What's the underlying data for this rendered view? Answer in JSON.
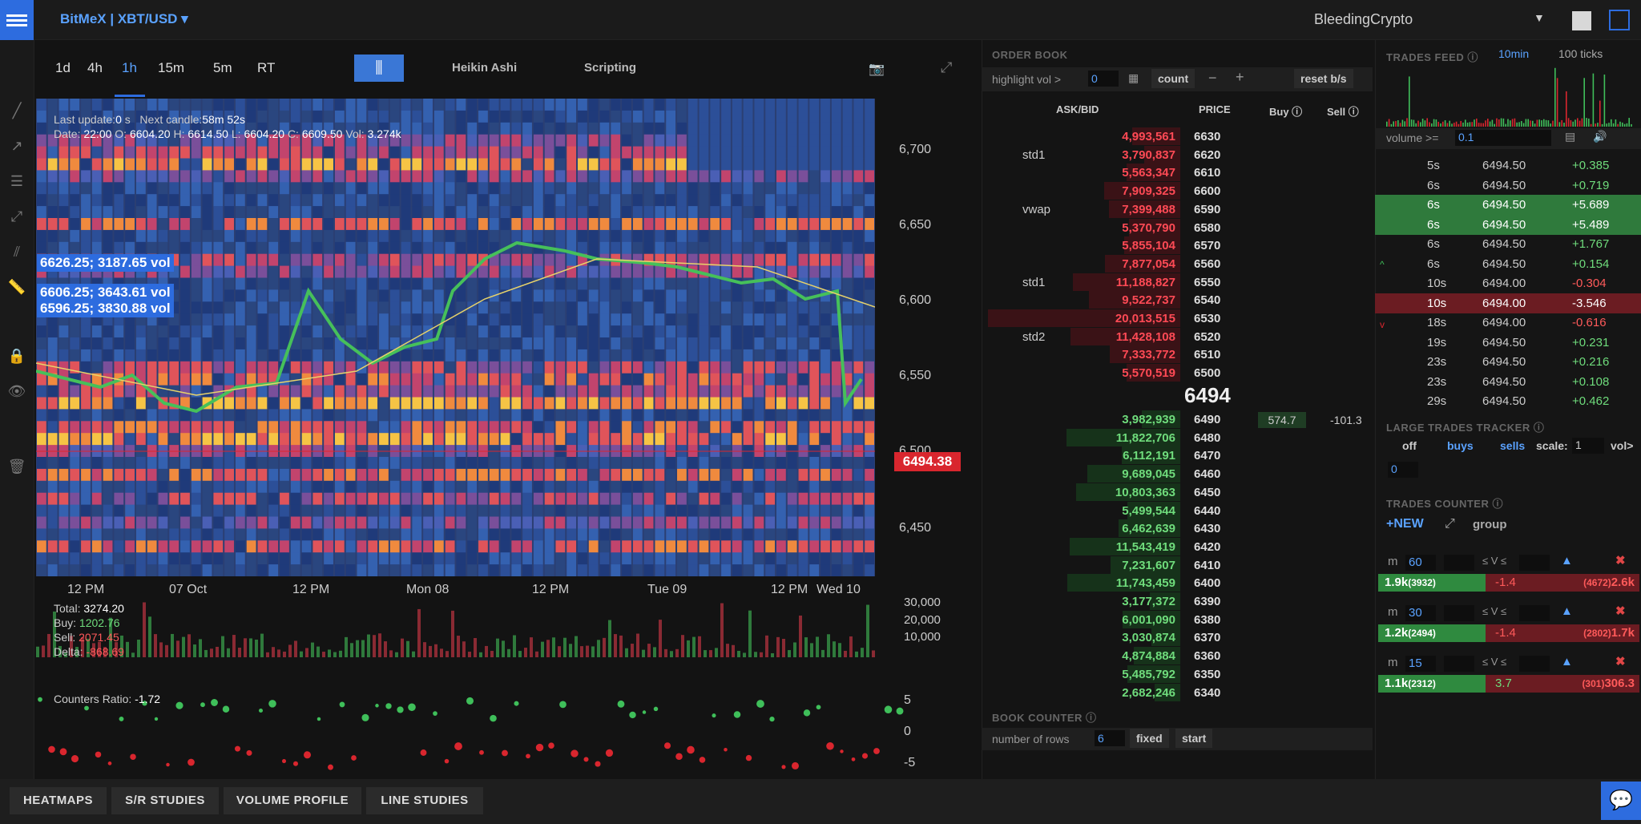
{
  "topbar": {
    "market": "BitMeX | XBT/USD",
    "user": "BleedingCrypto"
  },
  "timeframes": [
    "1d",
    "4h",
    "1h",
    "15m",
    "5m",
    "RT"
  ],
  "chart_tabs": {
    "heikin": "Heikin Ashi",
    "scripting": "Scripting"
  },
  "chart": {
    "last_update_label": "Last update:",
    "last_update_value": "0",
    "last_update_unit": "s",
    "next_candle_label": "Next candle:",
    "next_candle_value": "58m 52s",
    "ohlc": {
      "date_label": "Date:",
      "date": "22:00",
      "o_label": "O:",
      "o": "6604.20",
      "h_label": "H:",
      "h": "6614.50",
      "l_label": "L:",
      "l": "6604.20",
      "c_label": "C:",
      "c": "6609.50",
      "vol_label": "Vol:",
      "vol": "3.274k"
    },
    "vol_tags": [
      "6626.25; 3187.65 vol",
      "6606.25; 3643.61 vol",
      "6596.25; 3830.88 vol"
    ],
    "price_axis": [
      "6,700",
      "6,650",
      "6,600",
      "6,550",
      "6,500",
      "6,450"
    ],
    "last_price": "6494.38",
    "x_axis": [
      "12 PM",
      "07 Oct",
      "12 PM",
      "Mon 08",
      "12 PM",
      "Tue 09",
      "12 PM",
      "Wed 10"
    ],
    "stats": {
      "total_label": "Total:",
      "total": "3274.20",
      "buy_label": "Buy:",
      "buy": "1202.76",
      "sell_label": "Sell:",
      "sell": "2071.45",
      "delta_label": "Delta:",
      "delta": "-868.69"
    },
    "volume_axis": [
      "30,000",
      "20,000",
      "10,000"
    ],
    "counters_ratio_label": "Counters Ratio:",
    "counters_ratio": "-1.72",
    "ratio_axis": [
      "5",
      "0",
      "-5"
    ],
    "colors": {
      "accent": "#2d6cdf",
      "bull": "#3fbf5a",
      "bear": "#d9262e"
    }
  },
  "bottom_tabs": [
    "HEATMAPS",
    "S/R STUDIES",
    "VOLUME PROFILE",
    "LINE STUDIES"
  ],
  "orderbook": {
    "title": "ORDER BOOK",
    "highlight_label": "highlight vol >",
    "highlight_value": "0",
    "count_label": "count",
    "reset_label": "reset b/s",
    "headers": {
      "askbid": "ASK/BID",
      "price": "PRICE",
      "buy": "Buy",
      "sell": "Sell"
    },
    "asks": [
      {
        "qty": "4,993,561",
        "price": "6630",
        "tag": ""
      },
      {
        "qty": "3,790,837",
        "price": "6620",
        "tag": "std1"
      },
      {
        "qty": "5,563,347",
        "price": "6610",
        "tag": ""
      },
      {
        "qty": "7,909,325",
        "price": "6600",
        "tag": ""
      },
      {
        "qty": "7,399,488",
        "price": "6590",
        "tag": "vwap"
      },
      {
        "qty": "5,370,790",
        "price": "6580",
        "tag": ""
      },
      {
        "qty": "5,855,104",
        "price": "6570",
        "tag": ""
      },
      {
        "qty": "7,877,054",
        "price": "6560",
        "tag": ""
      },
      {
        "qty": "11,188,827",
        "price": "6550",
        "tag": "std1"
      },
      {
        "qty": "9,522,737",
        "price": "6540",
        "tag": ""
      },
      {
        "qty": "20,013,515",
        "price": "6530",
        "tag": ""
      },
      {
        "qty": "11,428,108",
        "price": "6520",
        "tag": "std2"
      },
      {
        "qty": "7,333,772",
        "price": "6510",
        "tag": ""
      },
      {
        "qty": "5,570,519",
        "price": "6500",
        "tag": ""
      }
    ],
    "mid": "6494",
    "bids": [
      {
        "qty": "3,982,939",
        "price": "6490"
      },
      {
        "qty": "11,822,706",
        "price": "6480"
      },
      {
        "qty": "6,112,191",
        "price": "6470"
      },
      {
        "qty": "9,689,045",
        "price": "6460"
      },
      {
        "qty": "10,803,363",
        "price": "6450"
      },
      {
        "qty": "5,499,544",
        "price": "6440"
      },
      {
        "qty": "6,462,639",
        "price": "6430"
      },
      {
        "qty": "11,543,419",
        "price": "6420"
      },
      {
        "qty": "7,231,607",
        "price": "6410"
      },
      {
        "qty": "11,743,459",
        "price": "6400"
      },
      {
        "qty": "3,177,372",
        "price": "6390"
      },
      {
        "qty": "6,001,090",
        "price": "6380"
      },
      {
        "qty": "3,030,874",
        "price": "6370"
      },
      {
        "qty": "4,874,884",
        "price": "6360"
      },
      {
        "qty": "5,485,792",
        "price": "6350"
      },
      {
        "qty": "2,682,246",
        "price": "6340"
      }
    ],
    "buy_value": "574.7",
    "sell_value": "-101.3"
  },
  "book_counter": {
    "title": "BOOK COUNTER",
    "rows_label": "number of rows",
    "rows_value": "6",
    "fixed_label": "fixed",
    "start_label": "start"
  },
  "trades_feed": {
    "title": "TRADES FEED",
    "tab_10min": "10min",
    "tab_100": "100 ticks",
    "volume_label": "volume >=",
    "volume_value": "0.1",
    "rows": [
      {
        "t": "5s",
        "p": "6494.50",
        "v": "+0.385",
        "hl": ""
      },
      {
        "t": "6s",
        "p": "6494.50",
        "v": "+0.719",
        "hl": ""
      },
      {
        "t": "6s",
        "p": "6494.50",
        "v": "+5.689",
        "hl": "green"
      },
      {
        "t": "6s",
        "p": "6494.50",
        "v": "+5.489",
        "hl": "green"
      },
      {
        "t": "6s",
        "p": "6494.50",
        "v": "+1.767",
        "hl": ""
      },
      {
        "t": "6s",
        "p": "6494.50",
        "v": "+0.154",
        "hl": ""
      },
      {
        "t": "10s",
        "p": "6494.00",
        "v": "-0.304",
        "hl": ""
      },
      {
        "t": "10s",
        "p": "6494.00",
        "v": "-3.546",
        "hl": "red"
      },
      {
        "t": "18s",
        "p": "6494.00",
        "v": "-0.616",
        "hl": ""
      },
      {
        "t": "19s",
        "p": "6494.50",
        "v": "+0.231",
        "hl": ""
      },
      {
        "t": "23s",
        "p": "6494.50",
        "v": "+0.216",
        "hl": ""
      },
      {
        "t": "23s",
        "p": "6494.50",
        "v": "+0.108",
        "hl": ""
      },
      {
        "t": "29s",
        "p": "6494.50",
        "v": "+0.462",
        "hl": ""
      }
    ]
  },
  "large_trades": {
    "title": "LARGE TRADES TRACKER",
    "off": "off",
    "buys": "buys",
    "sells": "sells",
    "scale_label": "scale:",
    "scale_value": "1",
    "vol_label": "vol>",
    "vol_value": "0"
  },
  "trades_counter": {
    "title": "TRADES COUNTER",
    "new_label": "NEW",
    "group_label": "group",
    "m_label": "m",
    "v_label": "≤ V ≤",
    "counters": [
      {
        "m": "60",
        "green": "1.9k",
        "green_n": "(3932)",
        "mid": "-1.4",
        "red_n": "(4672)",
        "red": "2.6k"
      },
      {
        "m": "30",
        "green": "1.2k",
        "green_n": "(2494)",
        "mid": "-1.4",
        "red_n": "(2802)",
        "red": "1.7k"
      },
      {
        "m": "15",
        "green": "1.1k",
        "green_n": "(2312)",
        "mid": "3.7",
        "red_n": "(301)",
        "red": "306.3"
      }
    ]
  }
}
